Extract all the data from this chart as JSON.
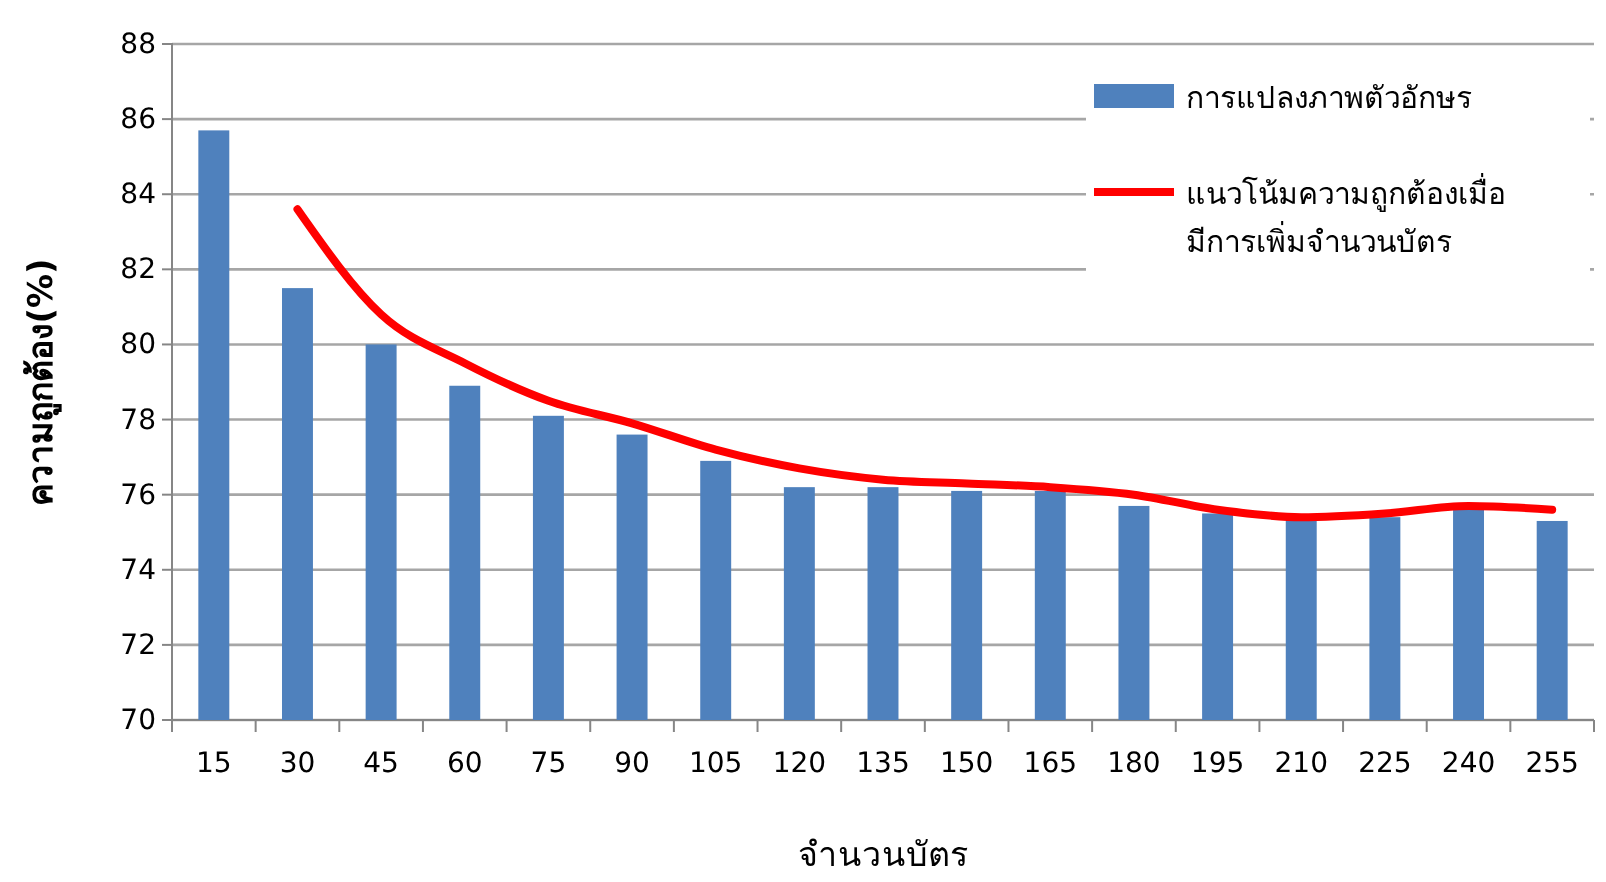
{
  "chart_data": {
    "type": "bar",
    "xlabel": "จำนวนบัตร",
    "ylabel": "ความถูกต้อง(%)",
    "categories": [
      "15",
      "30",
      "45",
      "60",
      "75",
      "90",
      "105",
      "120",
      "135",
      "150",
      "165",
      "180",
      "195",
      "210",
      "225",
      "240",
      "255"
    ],
    "series": [
      {
        "name": "การแปลงภาพตัวอักษร",
        "color": "#4f81bd",
        "values": [
          85.7,
          81.5,
          80.0,
          78.9,
          78.1,
          77.6,
          76.9,
          76.2,
          76.2,
          76.1,
          76.1,
          75.7,
          75.5,
          75.3,
          75.4,
          75.6,
          75.3
        ]
      },
      {
        "name": "แนวโน้มความถูกต้องเมื่อมีการเพิ่มจำนวนบัตร",
        "type": "line",
        "color": "#ff0000",
        "line_style": "solid",
        "marker": "none",
        "values": [
          null,
          83.6,
          80.8,
          79.5,
          78.5,
          77.9,
          77.2,
          76.7,
          76.4,
          76.3,
          76.2,
          76.0,
          75.6,
          75.4,
          75.5,
          75.7,
          75.6
        ]
      }
    ],
    "ylim": [
      70,
      88
    ],
    "yticks": [
      70,
      72,
      74,
      76,
      78,
      80,
      82,
      84,
      86,
      88
    ],
    "grid": "y",
    "legend": "top right"
  }
}
